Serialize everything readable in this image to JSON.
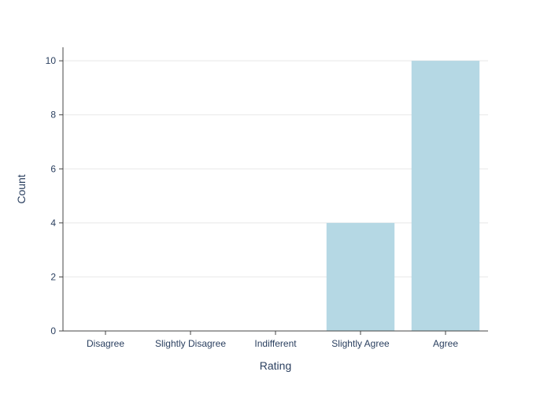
{
  "chart_data": {
    "type": "bar",
    "title": "",
    "xlabel": "Rating",
    "ylabel": "Count",
    "categories": [
      "Disagree",
      "Slightly Disagree",
      "Indifferent",
      "Slightly Agree",
      "Agree"
    ],
    "values": [
      0,
      0,
      0,
      4,
      10
    ],
    "ylim": [
      0,
      10.5
    ],
    "yticks": [
      0,
      2,
      4,
      6,
      8,
      10
    ],
    "grid": true,
    "legend": "none",
    "colors": {
      "bar": "#b5d8e4",
      "text": "#2a3f5f",
      "grid": "#e8e8e8",
      "axis": "#444444"
    }
  }
}
